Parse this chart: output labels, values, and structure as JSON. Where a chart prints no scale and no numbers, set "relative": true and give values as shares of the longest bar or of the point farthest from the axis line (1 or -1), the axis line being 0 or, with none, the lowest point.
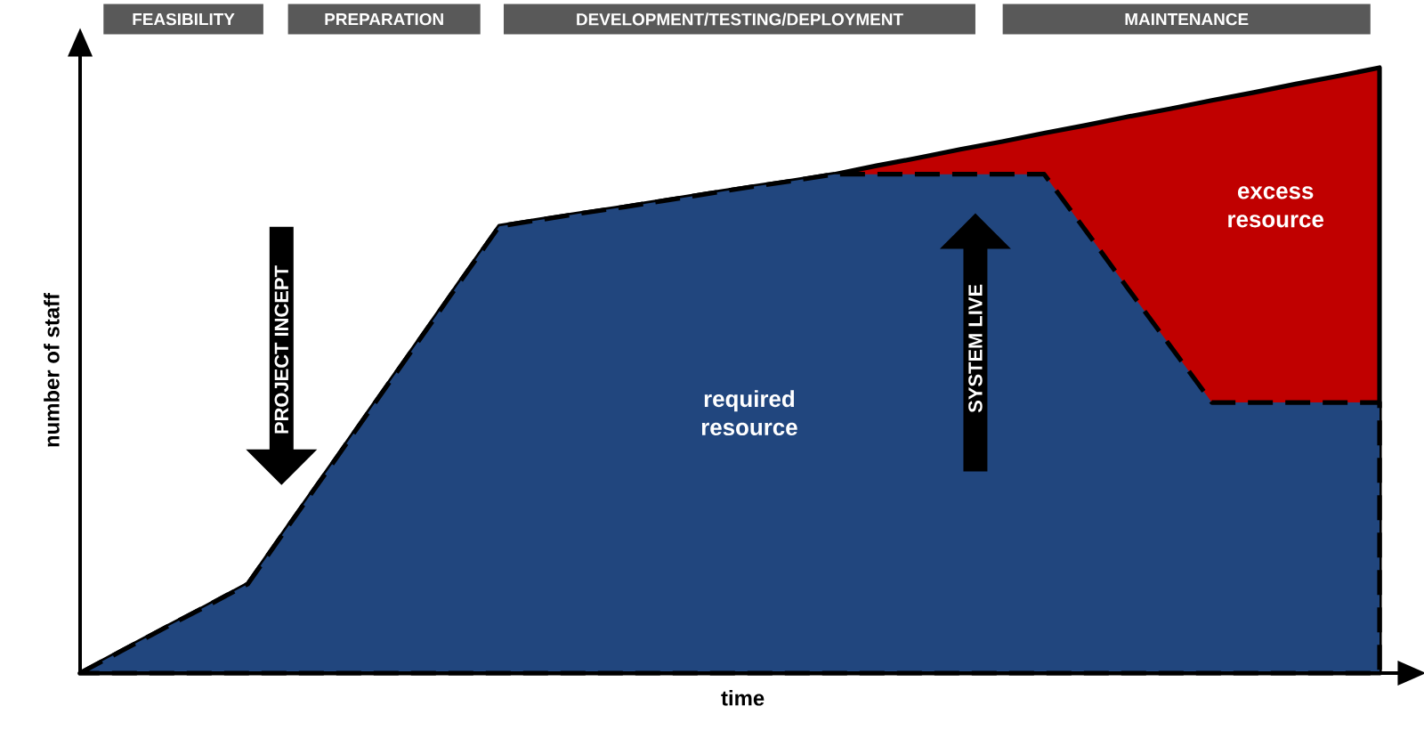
{
  "chart_data": {
    "type": "area",
    "relative": true,
    "stacked": true,
    "xlabel": "time",
    "ylabel": "number of staff",
    "categories": [
      null,
      null,
      null,
      null,
      null,
      null,
      null,
      null,
      null,
      null,
      null,
      null,
      null,
      null,
      null,
      null,
      null,
      null,
      null,
      null,
      null,
      null,
      null,
      null,
      null,
      null,
      null,
      null,
      null,
      null,
      null,
      null
    ],
    "series": [
      {
        "name": "required resource",
        "color": "#21467e",
        "line_style": "dashed",
        "values": [
          0,
          0.037,
          0.074,
          0.11,
          0.147,
          0.246,
          0.344,
          0.443,
          0.541,
          0.64,
          0.738,
          0.749,
          0.76,
          0.77,
          0.781,
          0.792,
          0.803,
          0.813,
          0.824,
          0.824,
          0.824,
          0.824,
          0.824,
          0.824,
          0.73,
          0.635,
          0.541,
          0.447,
          0.447,
          0.447,
          0.447,
          0.447
        ]
      },
      {
        "name": "excess resource",
        "color": "#c00000",
        "line_style": "solid",
        "values": [
          0,
          0,
          0,
          0,
          0,
          0,
          0,
          0,
          0,
          0,
          0,
          0,
          0,
          0,
          0,
          0,
          0,
          0,
          0,
          0.014,
          0.027,
          0.041,
          0.054,
          0.068,
          0.175,
          0.284,
          0.391,
          0.499,
          0.512,
          0.526,
          0.539,
          0.553
        ]
      }
    ],
    "annotations": [
      "FEASIBILITY",
      "PREPARATION",
      "DEVELOPMENT/TESTING/DEPLOYMENT",
      "MAINTENANCE",
      "PROJECT INCEPT",
      "SYSTEM LIVE"
    ]
  }
}
